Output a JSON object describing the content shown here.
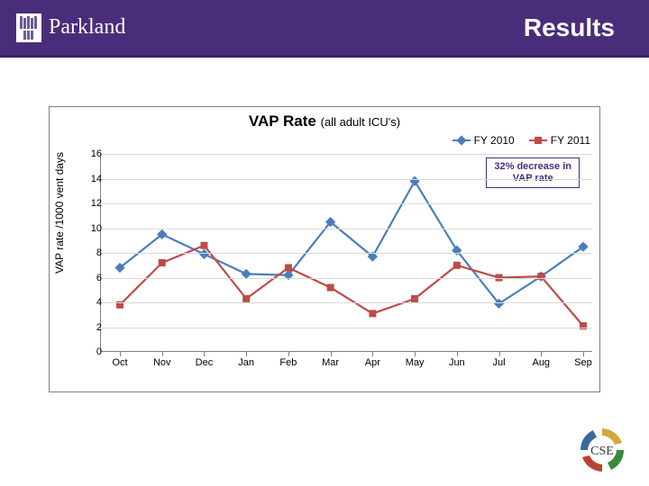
{
  "header": {
    "brand": "Parkland",
    "page_title": "Results",
    "bg_color": "#4a2d7a"
  },
  "chart": {
    "type": "line",
    "title_main": "VAP Rate",
    "title_sub": "(all adult ICU's)",
    "y_axis_label": "VAP rate /1000 vent days",
    "categories": [
      "Oct",
      "Nov",
      "Dec",
      "Jan",
      "Feb",
      "Mar",
      "Apr",
      "May",
      "Jun",
      "Jul",
      "Aug",
      "Sep"
    ],
    "ylim": [
      0,
      16
    ],
    "ytick_step": 2,
    "grid_color": "#d9d9d9",
    "axis_color": "#808080",
    "background": "#ffffff",
    "line_width": 2.2,
    "marker_size": 8,
    "series": [
      {
        "name": "FY 2010",
        "color": "#4a7ebb",
        "marker": "diamond",
        "values": [
          6.8,
          9.5,
          7.9,
          6.3,
          6.2,
          10.5,
          7.7,
          13.8,
          8.2,
          3.9,
          6.1,
          8.5
        ]
      },
      {
        "name": "FY 2011",
        "color": "#be4b48",
        "marker": "square",
        "values": [
          3.8,
          7.2,
          8.6,
          4.3,
          6.8,
          5.2,
          3.1,
          4.3,
          7.0,
          6.0,
          6.1,
          2.1
        ]
      }
    ],
    "callout": {
      "line1": "32% decrease in",
      "line2": "VAP rate",
      "border_color": "#4a2d7a"
    }
  },
  "footer": {
    "logo_label": "CSE"
  }
}
